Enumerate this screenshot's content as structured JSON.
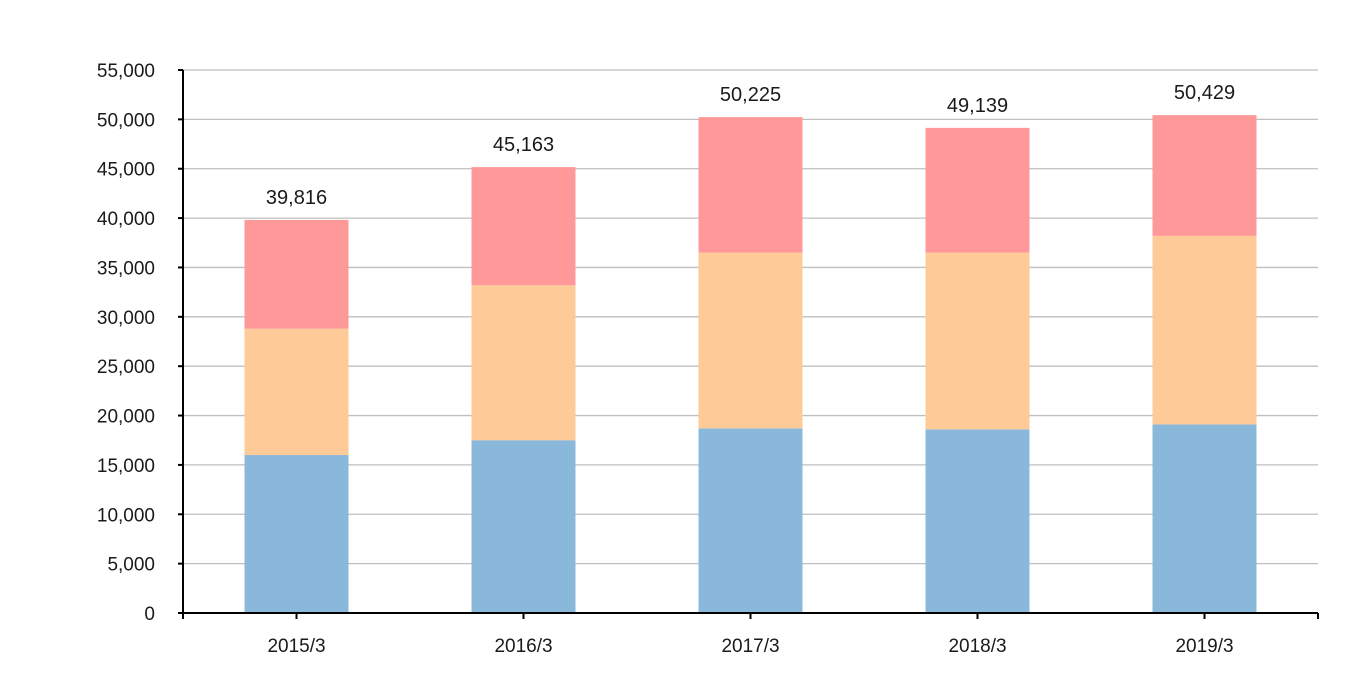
{
  "chart_data": {
    "type": "bar",
    "stacked": true,
    "categories": [
      "2015/3",
      "2016/3",
      "2017/3",
      "2018/3",
      "2019/3"
    ],
    "series": [
      {
        "color": "#8AB8DA",
        "values": [
          16000,
          17500,
          18700,
          18600,
          19100
        ]
      },
      {
        "color": "#FECA98",
        "values": [
          12800,
          15700,
          17800,
          17900,
          19100
        ]
      },
      {
        "color": "#FE9899",
        "values": [
          11016,
          11963,
          13725,
          12639,
          12229
        ]
      }
    ],
    "totals": [
      39816,
      45163,
      50225,
      49139,
      50429
    ],
    "total_labels": [
      "39,816",
      "45,163",
      "50,225",
      "49,139",
      "50,429"
    ],
    "ylim": [
      0,
      55000
    ],
    "yticks": [
      0,
      5000,
      10000,
      15000,
      20000,
      25000,
      30000,
      35000,
      40000,
      45000,
      50000,
      55000
    ],
    "ytick_labels": [
      "0",
      "5,000",
      "10,000",
      "15,000",
      "20,000",
      "25,000",
      "30,000",
      "35,000",
      "40,000",
      "45,000",
      "50,000",
      "55,000"
    ],
    "grid": true,
    "legend": false
  }
}
